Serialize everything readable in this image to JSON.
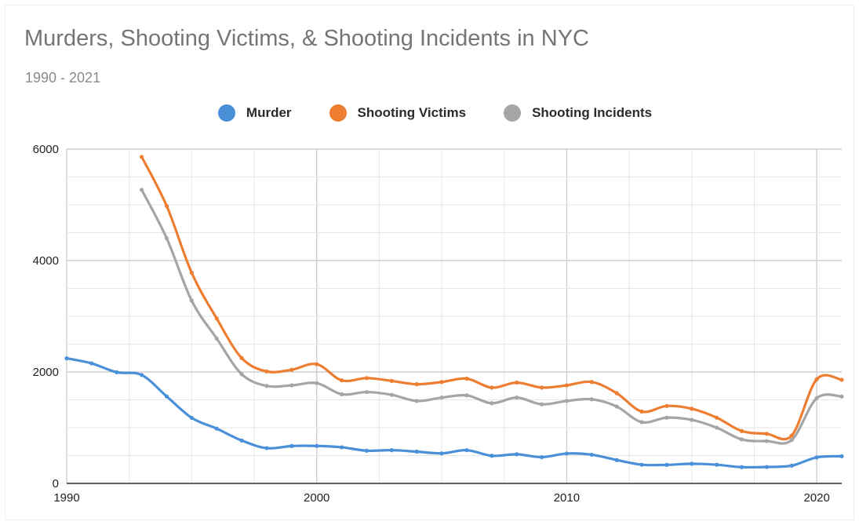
{
  "chart_data": {
    "type": "line",
    "title": "Murders, Shooting Victims, & Shooting Incidents in NYC",
    "subtitle": "1990 - 2021",
    "xlabel": "",
    "ylabel": "",
    "xlim": [
      1990,
      2021
    ],
    "ylim": [
      0,
      6000
    ],
    "x_ticks": [
      1990,
      2000,
      2010,
      2020
    ],
    "y_ticks": [
      0,
      2000,
      4000,
      6000
    ],
    "grid": true,
    "legend_position": "top",
    "x": [
      1990,
      1991,
      1992,
      1993,
      1994,
      1995,
      1996,
      1997,
      1998,
      1999,
      2000,
      2001,
      2002,
      2003,
      2004,
      2005,
      2006,
      2007,
      2008,
      2009,
      2010,
      2011,
      2012,
      2013,
      2014,
      2015,
      2016,
      2017,
      2018,
      2019,
      2020,
      2021
    ],
    "series": [
      {
        "name": "Murder",
        "color": "#4a90d9",
        "values": [
          2245,
          2154,
          1995,
          1946,
          1561,
          1177,
          983,
          770,
          633,
          671,
          673,
          649,
          587,
          597,
          570,
          539,
          596,
          496,
          523,
          471,
          536,
          515,
          419,
          335,
          333,
          352,
          335,
          292,
          295,
          319,
          468,
          488
        ]
      },
      {
        "name": "Shooting Victims",
        "color": "#ed7d31",
        "values": [
          null,
          null,
          null,
          5860,
          4980,
          3780,
          2960,
          2250,
          2010,
          2040,
          2140,
          1850,
          1890,
          1840,
          1780,
          1820,
          1880,
          1720,
          1810,
          1720,
          1760,
          1820,
          1620,
          1290,
          1390,
          1340,
          1180,
          940,
          890,
          860,
          1870,
          1860
        ]
      },
      {
        "name": "Shooting Incidents",
        "color": "#a5a5a5",
        "values": [
          null,
          null,
          null,
          5270,
          4400,
          3280,
          2600,
          1960,
          1750,
          1760,
          1800,
          1600,
          1640,
          1590,
          1480,
          1540,
          1580,
          1440,
          1540,
          1420,
          1480,
          1510,
          1380,
          1100,
          1180,
          1140,
          1000,
          790,
          760,
          780,
          1530,
          1560
        ]
      }
    ]
  }
}
